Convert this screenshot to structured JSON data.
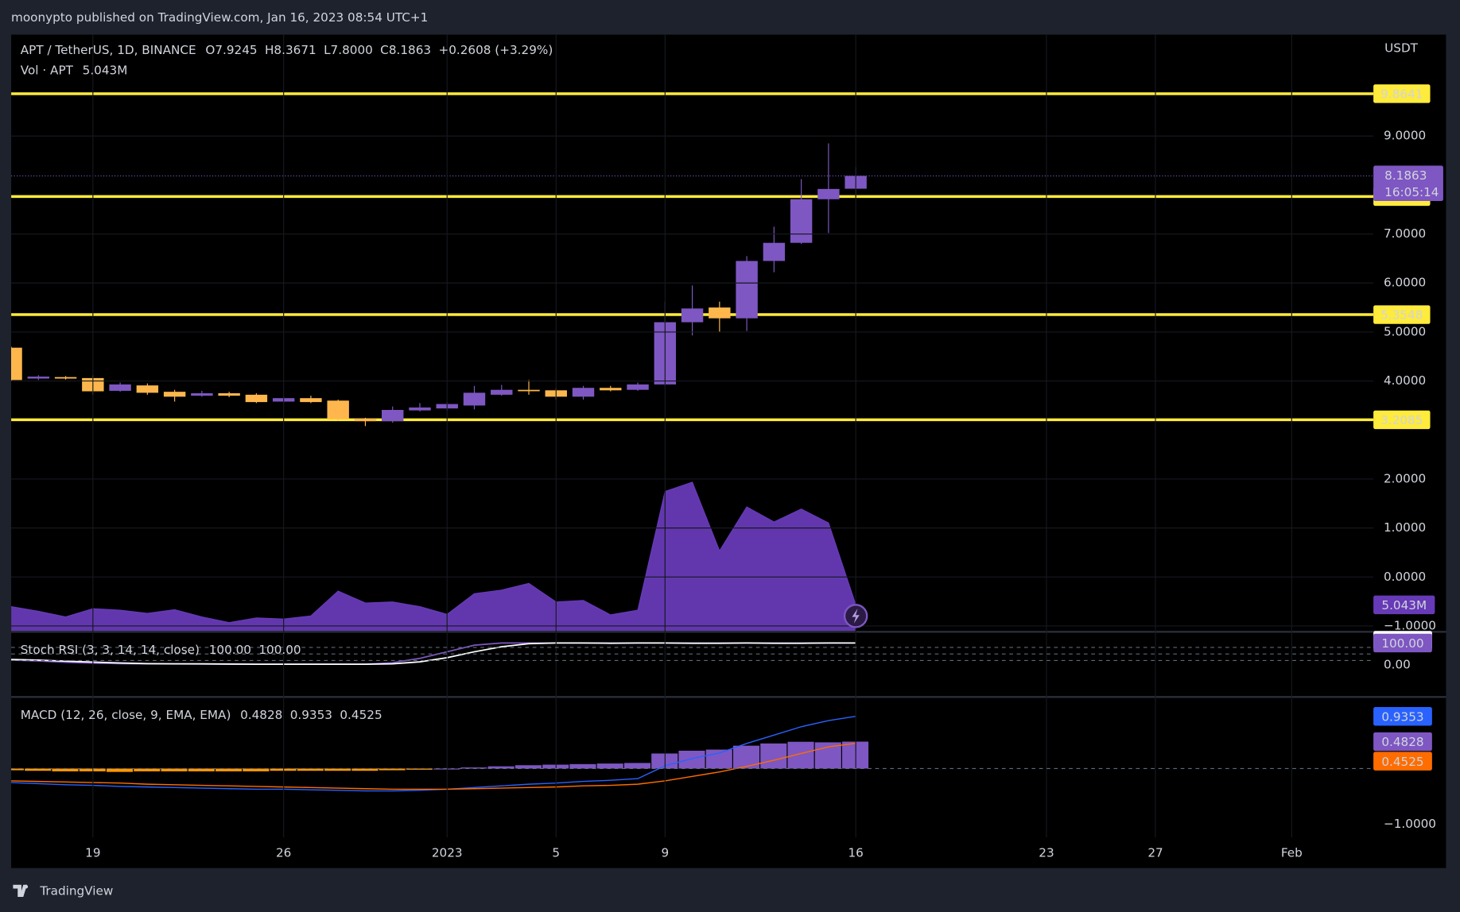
{
  "header": {
    "attribution": "moonypto published on TradingView.com, Jan 16, 2023 08:54 UTC+1"
  },
  "footer": {
    "brand": "TradingView"
  },
  "chart_data": [
    {
      "type": "candlestick",
      "title": "APT / TetherUS, 1D, BINANCE",
      "legend": [
        {
          "key": "O",
          "value": "7.9245"
        },
        {
          "key": "H",
          "value": "8.3671"
        },
        {
          "key": "L",
          "value": "7.8000"
        },
        {
          "key": "C",
          "value": "8.1863"
        }
      ],
      "change": "+0.2608 (+3.29%)",
      "unit": "USDT",
      "up_color": "#7e57c2",
      "down_color": "#ffb74d",
      "x": [
        "2022-12-16",
        "2022-12-17",
        "2022-12-18",
        "2022-12-19",
        "2022-12-20",
        "2022-12-21",
        "2022-12-22",
        "2022-12-23",
        "2022-12-24",
        "2022-12-25",
        "2022-12-26",
        "2022-12-27",
        "2022-12-28",
        "2022-12-29",
        "2022-12-30",
        "2022-12-31",
        "2023-01-01",
        "2023-01-02",
        "2023-01-03",
        "2023-01-04",
        "2023-01-05",
        "2023-01-06",
        "2023-01-07",
        "2023-01-08",
        "2023-01-09",
        "2023-01-10",
        "2023-01-11",
        "2023-01-12",
        "2023-01-13",
        "2023-01-14",
        "2023-01-15",
        "2023-01-16"
      ],
      "open": [
        4.68,
        4.05,
        4.08,
        4.06,
        3.8,
        3.91,
        3.78,
        3.7,
        3.75,
        3.72,
        3.58,
        3.65,
        3.6,
        3.23,
        3.18,
        3.4,
        3.44,
        3.5,
        3.72,
        3.82,
        3.81,
        3.68,
        3.86,
        3.82,
        3.93,
        5.2,
        5.5,
        5.28,
        6.45,
        6.82,
        7.71,
        7.9245
      ],
      "high": [
        4.7,
        4.12,
        4.1,
        4.12,
        3.97,
        3.95,
        3.82,
        3.8,
        3.78,
        3.75,
        3.68,
        3.7,
        3.62,
        3.25,
        3.48,
        3.55,
        3.57,
        3.9,
        3.92,
        4.02,
        3.85,
        3.9,
        3.9,
        3.97,
        5.62,
        5.95,
        5.62,
        6.55,
        7.15,
        8.12,
        8.85,
        8.3671
      ],
      "low": [
        4.0,
        4.02,
        4.03,
        3.72,
        3.78,
        3.72,
        3.58,
        3.68,
        3.67,
        3.55,
        3.56,
        3.55,
        3.2,
        3.08,
        3.15,
        3.38,
        3.4,
        3.42,
        3.7,
        3.72,
        3.62,
        3.62,
        3.79,
        3.8,
        3.9,
        4.93,
        5.0,
        5.02,
        6.22,
        6.8,
        7.02,
        7.8
      ],
      "close": [
        4.02,
        4.09,
        4.05,
        3.79,
        3.93,
        3.76,
        3.68,
        3.75,
        3.7,
        3.57,
        3.65,
        3.57,
        3.22,
        3.18,
        3.41,
        3.46,
        3.53,
        3.76,
        3.82,
        3.8,
        3.68,
        3.86,
        3.81,
        3.93,
        5.2,
        5.48,
        5.28,
        6.45,
        6.82,
        7.71,
        7.92,
        8.1863
      ],
      "countdown": "16:05:14",
      "levels": [
        9.8641,
        7.7646,
        5.3548,
        3.2085
      ],
      "level_color": "#ffeb3b",
      "xlim": [
        "2022-12-16",
        "2023-02-04"
      ],
      "xticks": [
        {
          "value": "2022-12-19",
          "label": "19"
        },
        {
          "value": "2022-12-26",
          "label": "26"
        },
        {
          "value": "2023-01-01",
          "label": "2023"
        },
        {
          "value": "2023-01-05",
          "label": "5"
        },
        {
          "value": "2023-01-09",
          "label": "9"
        },
        {
          "value": "2023-01-16",
          "label": "16"
        },
        {
          "value": "2023-01-23",
          "label": "23"
        },
        {
          "value": "2023-01-27",
          "label": "27"
        },
        {
          "value": "2023-02-01",
          "label": "Feb"
        }
      ],
      "ylim": [
        -1.1,
        11.07
      ],
      "yticks": [
        {
          "value": -1,
          "label": "−1.0000"
        },
        {
          "value": 0,
          "label": "0.0000"
        },
        {
          "value": 1,
          "label": "1.0000"
        },
        {
          "value": 2,
          "label": "2.0000"
        },
        {
          "value": 4,
          "label": "4.0000"
        },
        {
          "value": 5,
          "label": "5.0000"
        },
        {
          "value": 6,
          "label": "6.0000"
        },
        {
          "value": 7,
          "label": "7.0000"
        },
        {
          "value": 9,
          "label": "9.0000"
        }
      ],
      "grid": true
    },
    {
      "type": "area",
      "title": "Vol · APT",
      "color": "#673ab7",
      "values": [
        4.7,
        3.8,
        2.7,
        4.3,
        4.0,
        3.4,
        4.1,
        2.7,
        1.6,
        2.5,
        2.3,
        2.9,
        7.7,
        5.4,
        5.6,
        4.7,
        3.2,
        7.2,
        7.9,
        9.2,
        5.6,
        5.9,
        3.1,
        4.0,
        27.0,
        28.8,
        15.5,
        24.0,
        21.1,
        23.6,
        20.9,
        5.043
      ],
      "value_labels": [
        null,
        null,
        null,
        null,
        null,
        null,
        null,
        null,
        null,
        null,
        null,
        null,
        null,
        null,
        null,
        null,
        null,
        null,
        null,
        null,
        null,
        null,
        null,
        null,
        null,
        null,
        null,
        null,
        null,
        null,
        null,
        "5.043M"
      ],
      "ylim": [
        0,
        115.5
      ]
    },
    {
      "type": "line",
      "title": "Stoch RSI (3, 3, 14, 14, close)",
      "series": [
        {
          "color": "#7e57c2",
          "values": [
            22,
            18,
            12,
            8,
            6,
            5,
            5,
            4,
            3,
            3,
            3,
            3,
            3,
            3,
            10,
            30,
            60,
            90,
            100,
            100,
            100,
            100,
            100,
            100,
            100,
            100,
            100,
            100,
            100,
            100,
            100,
            100
          ],
          "value_labels": [
            null,
            null,
            null,
            null,
            null,
            null,
            null,
            null,
            null,
            null,
            null,
            null,
            null,
            null,
            null,
            null,
            null,
            null,
            null,
            null,
            null,
            null,
            null,
            null,
            null,
            null,
            null,
            null,
            null,
            null,
            null,
            "100.00"
          ]
        },
        {
          "color": "#ffffff",
          "values": [
            25,
            22,
            17,
            13,
            9,
            6,
            5,
            5,
            4,
            3,
            3,
            3,
            3,
            3,
            5,
            14,
            33,
            60,
            83,
            97,
            100,
            100,
            99,
            100,
            100,
            99,
            99,
            100,
            99,
            99,
            100,
            100
          ],
          "value_labels": [
            null,
            null,
            null,
            null,
            null,
            null,
            null,
            null,
            null,
            null,
            null,
            null,
            null,
            null,
            null,
            null,
            null,
            null,
            null,
            null,
            null,
            null,
            null,
            null,
            null,
            null,
            null,
            null,
            null,
            null,
            null,
            "100.00"
          ]
        }
      ],
      "bands": [
        80,
        50,
        20
      ],
      "ylim": [
        -142,
        147
      ],
      "yticks": [
        {
          "value": 0,
          "label": "0.00"
        }
      ]
    },
    {
      "type": "macd",
      "title": "MACD (12, 26, close, 9, EMA, EMA)",
      "histogram": [
        -0.03,
        -0.04,
        -0.05,
        -0.05,
        -0.06,
        -0.05,
        -0.05,
        -0.05,
        -0.05,
        -0.05,
        -0.04,
        -0.04,
        -0.04,
        -0.04,
        -0.03,
        -0.02,
        0.0,
        0.02,
        0.04,
        0.06,
        0.07,
        0.08,
        0.09,
        0.1,
        0.27,
        0.32,
        0.34,
        0.41,
        0.45,
        0.48,
        0.47,
        0.4828
      ],
      "macd": [
        -0.25,
        -0.27,
        -0.29,
        -0.3,
        -0.32,
        -0.33,
        -0.34,
        -0.35,
        -0.36,
        -0.37,
        -0.37,
        -0.38,
        -0.39,
        -0.4,
        -0.4,
        -0.39,
        -0.37,
        -0.34,
        -0.31,
        -0.28,
        -0.26,
        -0.23,
        -0.21,
        -0.18,
        0.05,
        0.18,
        0.28,
        0.45,
        0.6,
        0.75,
        0.86,
        0.9353
      ],
      "signal": [
        -0.22,
        -0.23,
        -0.24,
        -0.25,
        -0.26,
        -0.28,
        -0.29,
        -0.3,
        -0.31,
        -0.32,
        -0.33,
        -0.34,
        -0.35,
        -0.36,
        -0.37,
        -0.37,
        -0.37,
        -0.36,
        -0.35,
        -0.34,
        -0.33,
        -0.31,
        -0.3,
        -0.28,
        -0.22,
        -0.14,
        -0.06,
        0.04,
        0.15,
        0.27,
        0.39,
        0.4525
      ],
      "histogram_up_color": "#7e57c2",
      "histogram_down_color": "#ff9800",
      "macd_color": "#2962ff",
      "signal_color": "#ff6d00",
      "ylim": [
        -1.233,
        1.267
      ],
      "yticks": [
        {
          "value": -1,
          "label": "−1.0000"
        }
      ]
    }
  ]
}
